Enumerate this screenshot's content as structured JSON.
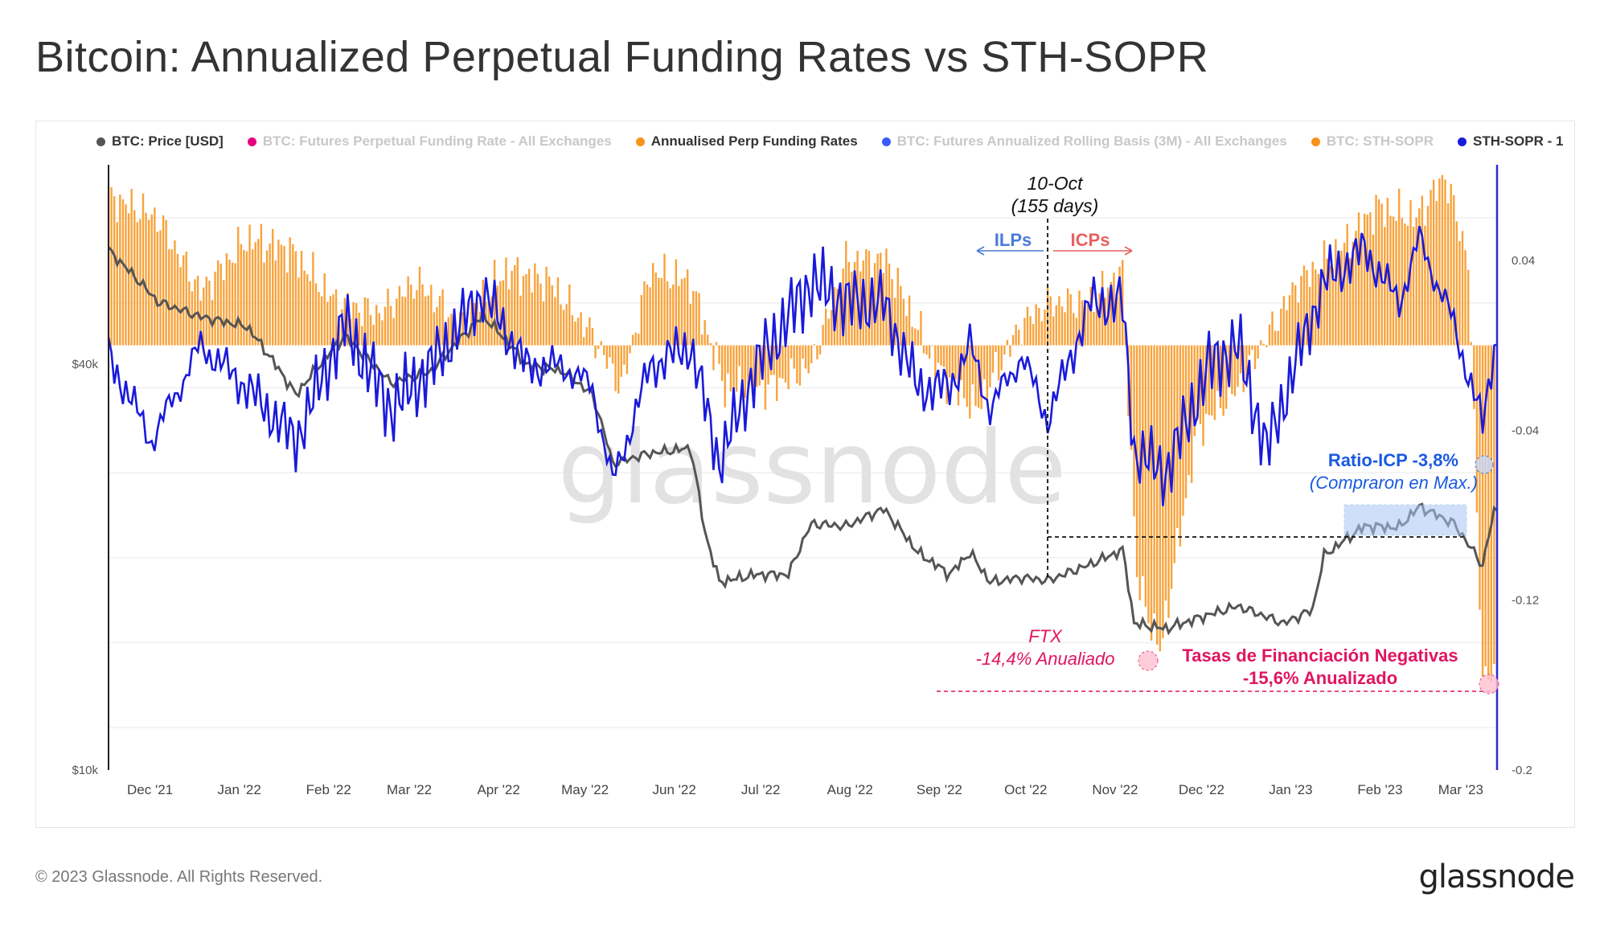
{
  "title": "Bitcoin: Annualized Perpetual Funding Rates vs STH-SOPR",
  "footer": {
    "copyright": "© 2023 Glassnode. All Rights Reserved.",
    "logo": "glassnode"
  },
  "watermark": "glassnode",
  "legend": [
    {
      "label": "BTC: Price [USD]",
      "color": "#555555",
      "active": true
    },
    {
      "label": "BTC: Futures Perpetual Funding Rate - All Exchanges",
      "color": "#e6007e",
      "active": false
    },
    {
      "label": "Annualised Perp Funding Rates",
      "color": "#f7931a",
      "active": true
    },
    {
      "label": "BTC: Futures Annualized Rolling Basis (3M) - All Exchanges",
      "color": "#3b5bfd",
      "active": false
    },
    {
      "label": "BTC: STH-SOPR",
      "color": "#f7931a",
      "active": false
    },
    {
      "label": "STH-SOPR - 1",
      "color": "#1a1adb",
      "active": true
    }
  ],
  "chart_data": {
    "type": "line",
    "x_tick_labels": [
      "Dec '21",
      "Jan '22",
      "Feb '22",
      "Mar '22",
      "Apr '22",
      "May '22",
      "Jun '22",
      "Jul '22",
      "Aug '22",
      "Sep '22",
      "Oct '22",
      "Nov '22",
      "Dec '22",
      "Jan '23",
      "Feb '23",
      "Mar '23"
    ],
    "x_range": [
      "2021-11-18",
      "2023-03-15"
    ],
    "left_axis": {
      "scale": "log",
      "ticks": [
        "$10k",
        "$40k"
      ],
      "tick_values": [
        10000,
        40000
      ]
    },
    "right_axis": {
      "ticks": [
        "0.04",
        "-0.04",
        "-0.12",
        "-0.2"
      ],
      "tick_values": [
        0.04,
        -0.04,
        -0.12,
        -0.2
      ],
      "range": [
        -0.2,
        0.085
      ]
    },
    "series": [
      {
        "name": "BTC: Price [USD]",
        "color": "#555555",
        "axis": "left",
        "points": [
          [
            "2021-11-18",
            59000
          ],
          [
            "2021-12-05",
            49500
          ],
          [
            "2021-12-20",
            47000
          ],
          [
            "2022-01-05",
            45500
          ],
          [
            "2022-01-22",
            36000
          ],
          [
            "2022-02-08",
            44000
          ],
          [
            "2022-02-24",
            37500
          ],
          [
            "2022-03-10",
            39000
          ],
          [
            "2022-03-28",
            47200
          ],
          [
            "2022-04-12",
            40000
          ],
          [
            "2022-04-25",
            39000
          ],
          [
            "2022-05-05",
            36000
          ],
          [
            "2022-05-12",
            28500
          ],
          [
            "2022-05-25",
            29500
          ],
          [
            "2022-06-08",
            30000
          ],
          [
            "2022-06-13",
            22500
          ],
          [
            "2022-06-18",
            19000
          ],
          [
            "2022-07-01",
            19500
          ],
          [
            "2022-07-12",
            19500
          ],
          [
            "2022-07-20",
            23200
          ],
          [
            "2022-08-01",
            23000
          ],
          [
            "2022-08-14",
            24400
          ],
          [
            "2022-08-26",
            21000
          ],
          [
            "2022-09-06",
            19500
          ],
          [
            "2022-09-13",
            21000
          ],
          [
            "2022-09-20",
            19000
          ],
          [
            "2022-10-01",
            19300
          ],
          [
            "2022-10-10",
            19100
          ],
          [
            "2022-10-25",
            20200
          ],
          [
            "2022-11-05",
            21200
          ],
          [
            "2022-11-09",
            16500
          ],
          [
            "2022-11-20",
            16200
          ],
          [
            "2022-12-05",
            17000
          ],
          [
            "2022-12-15",
            17500
          ],
          [
            "2022-12-31",
            16500
          ],
          [
            "2023-01-10",
            17300
          ],
          [
            "2023-01-14",
            20800
          ],
          [
            "2023-01-28",
            23000
          ],
          [
            "2023-02-09",
            22900
          ],
          [
            "2023-02-16",
            24600
          ],
          [
            "2023-02-28",
            23200
          ],
          [
            "2023-03-10",
            20100
          ],
          [
            "2023-03-14",
            24200
          ]
        ]
      },
      {
        "name": "Annualised Perp Funding Rates",
        "color": "#f7931a",
        "axis": "right",
        "type": "bar",
        "points": [
          [
            "2021-11-18",
            0.07
          ],
          [
            "2021-12-05",
            0.06
          ],
          [
            "2021-12-20",
            0.025
          ],
          [
            "2022-01-05",
            0.05
          ],
          [
            "2022-01-20",
            0.045
          ],
          [
            "2022-02-05",
            0.02
          ],
          [
            "2022-02-20",
            0.015
          ],
          [
            "2022-03-05",
            0.03
          ],
          [
            "2022-03-20",
            0.01
          ],
          [
            "2022-04-05",
            0.035
          ],
          [
            "2022-04-20",
            0.03
          ],
          [
            "2022-05-05",
            0.005
          ],
          [
            "2022-05-15",
            -0.02
          ],
          [
            "2022-05-25",
            0.035
          ],
          [
            "2022-06-08",
            0.03
          ],
          [
            "2022-06-20",
            -0.02
          ],
          [
            "2022-07-05",
            -0.02
          ],
          [
            "2022-07-20",
            -0.01
          ],
          [
            "2022-08-01",
            0.04
          ],
          [
            "2022-08-15",
            0.04
          ],
          [
            "2022-09-01",
            -0.01
          ],
          [
            "2022-09-15",
            -0.03
          ],
          [
            "2022-10-01",
            0.01
          ],
          [
            "2022-10-10",
            0.02
          ],
          [
            "2022-10-25",
            0.02
          ],
          [
            "2022-11-05",
            0.035
          ],
          [
            "2022-11-10",
            -0.11
          ],
          [
            "2022-11-18",
            -0.144
          ],
          [
            "2022-12-01",
            -0.04
          ],
          [
            "2022-12-15",
            -0.02
          ],
          [
            "2023-01-05",
            0.03
          ],
          [
            "2023-01-20",
            0.045
          ],
          [
            "2023-02-01",
            0.065
          ],
          [
            "2023-02-15",
            0.06
          ],
          [
            "2023-02-25",
            0.08
          ],
          [
            "2023-03-05",
            0.04
          ],
          [
            "2023-03-10",
            -0.156
          ]
        ]
      },
      {
        "name": "STH-SOPR - 1",
        "color": "#1a1adb",
        "axis": "right",
        "points": [
          [
            "2021-11-18",
            -0.005
          ],
          [
            "2021-12-03",
            -0.045
          ],
          [
            "2021-12-20",
            0.0
          ],
          [
            "2022-01-05",
            -0.02
          ],
          [
            "2022-01-22",
            -0.045
          ],
          [
            "2022-02-08",
            0.01
          ],
          [
            "2022-02-24",
            -0.03
          ],
          [
            "2022-03-10",
            -0.01
          ],
          [
            "2022-03-28",
            0.025
          ],
          [
            "2022-04-12",
            -0.01
          ],
          [
            "2022-04-25",
            -0.01
          ],
          [
            "2022-05-05",
            -0.02
          ],
          [
            "2022-05-12",
            -0.065
          ],
          [
            "2022-05-25",
            -0.01
          ],
          [
            "2022-06-08",
            0.0
          ],
          [
            "2022-06-18",
            -0.055
          ],
          [
            "2022-07-01",
            -0.01
          ],
          [
            "2022-07-20",
            0.03
          ],
          [
            "2022-08-01",
            0.02
          ],
          [
            "2022-08-14",
            0.02
          ],
          [
            "2022-08-26",
            -0.02
          ],
          [
            "2022-09-06",
            -0.02
          ],
          [
            "2022-09-13",
            0.0
          ],
          [
            "2022-09-20",
            -0.03
          ],
          [
            "2022-10-01",
            -0.005
          ],
          [
            "2022-10-10",
            -0.035
          ],
          [
            "2022-10-25",
            0.02
          ],
          [
            "2022-11-05",
            0.02
          ],
          [
            "2022-11-09",
            -0.05
          ],
          [
            "2022-11-20",
            -0.06
          ],
          [
            "2022-12-05",
            -0.01
          ],
          [
            "2022-12-15",
            0.0
          ],
          [
            "2022-12-25",
            -0.05
          ],
          [
            "2023-01-05",
            -0.005
          ],
          [
            "2023-01-14",
            0.03
          ],
          [
            "2023-01-28",
            0.045
          ],
          [
            "2023-02-09",
            0.02
          ],
          [
            "2023-02-16",
            0.05
          ],
          [
            "2023-02-28",
            0.01
          ],
          [
            "2023-03-10",
            -0.038
          ],
          [
            "2023-03-14",
            0.0
          ]
        ]
      }
    ],
    "annotations": [
      {
        "text": "10-Oct",
        "color": "#111111",
        "italic": true
      },
      {
        "text": "(155 days)",
        "color": "#111111",
        "italic": true
      },
      {
        "text": "ILPs",
        "color": "#4a7bd8",
        "bold": true
      },
      {
        "text": "ICPs",
        "color": "#e8605f",
        "bold": true
      },
      {
        "text": "Ratio-ICP -3,8%",
        "color": "#1a5ae0",
        "bold": true
      },
      {
        "text": "(Compraron en Max.)",
        "color": "#1a5ae0",
        "italic": true
      },
      {
        "text": "FTX",
        "color": "#e0155f",
        "italic": true
      },
      {
        "text": "-14,4% Anualiado",
        "color": "#e0155f",
        "italic": true
      },
      {
        "text": "Tasas de Financiación Negativas",
        "color": "#e0155f",
        "bold": true
      },
      {
        "text": "-15,6% Anualizado",
        "color": "#e0155f",
        "bold": true
      }
    ]
  }
}
